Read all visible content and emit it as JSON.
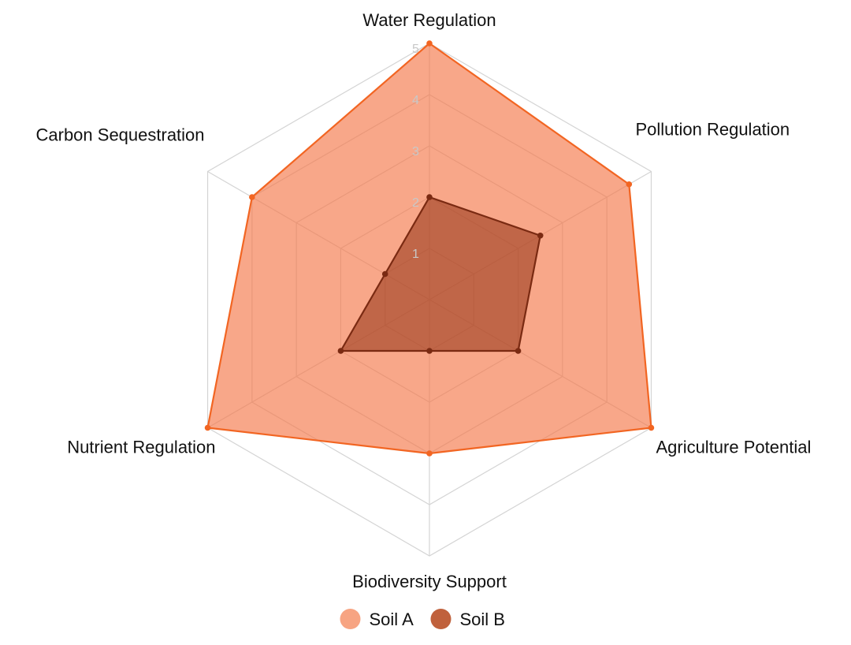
{
  "chart_data": {
    "type": "radar",
    "axes": [
      "Water Regulation",
      "Pollution Regulation",
      "Agriculture Potential",
      "Biodiversity Support",
      "Nutrient Regulation",
      "Carbon Sequestration"
    ],
    "range": [
      0,
      5
    ],
    "ticks": [
      "1",
      "2",
      "3",
      "4",
      "5"
    ],
    "grid": true,
    "legend_position": "bottom",
    "series": [
      {
        "name": "Soil A",
        "values": [
          5,
          4.5,
          5,
          3,
          5,
          4
        ],
        "fill": "#f5784a",
        "fill_opacity": 0.65,
        "stroke": "#f26522",
        "legend_color": "#f7a482"
      },
      {
        "name": "Soil B",
        "values": [
          2,
          2.5,
          2,
          1,
          2,
          1
        ],
        "fill": "#9b3b1c",
        "fill_opacity": 0.6,
        "stroke": "#7a2a12",
        "legend_color": "#c0613c"
      }
    ]
  }
}
